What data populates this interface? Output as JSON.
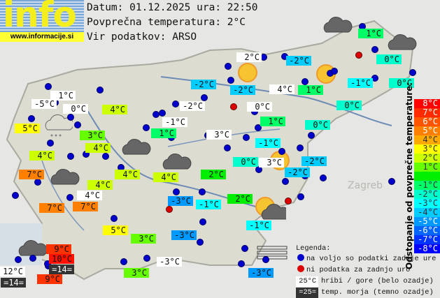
{
  "logo": {
    "text": "info",
    "url": "www.informacije.si"
  },
  "header": {
    "date_line": "Datum: 01.12.2025 ura: 22:50",
    "avg_line": "Povprečna temperatura: 2°C",
    "source_line": "Vir podatkov: ARSO"
  },
  "map_labels": {
    "zagreb": "Zagreb"
  },
  "stations": [
    {
      "t": "1°C",
      "bg": "#00ff66"
    },
    {
      "t": "2°C",
      "bg": "#ffffff"
    },
    {
      "t": "-2°C",
      "bg": "#00ccff"
    },
    {
      "t": "0°C",
      "bg": "#00ffcc"
    },
    {
      "t": "-2°C",
      "bg": "#00ccff"
    },
    {
      "t": "-2°C",
      "bg": "#00ccff"
    },
    {
      "t": "4°C",
      "bg": "#ffffff"
    },
    {
      "t": "1°C",
      "bg": "#00ff66"
    },
    {
      "t": "-1°C",
      "bg": "#00ffff"
    },
    {
      "t": "0°C",
      "bg": "#00ffcc"
    },
    {
      "t": "1°C",
      "bg": "#ffffff"
    },
    {
      "t": "-5°C",
      "bg": "#ffffff"
    },
    {
      "t": "0°C",
      "bg": "#ffffff"
    },
    {
      "t": "4°C",
      "bg": "#ccff00"
    },
    {
      "t": "-2°C",
      "bg": "#ffffff"
    },
    {
      "t": "0°C",
      "bg": "#ffffff"
    },
    {
      "t": "0°C",
      "bg": "#00ffcc"
    },
    {
      "t": "-1°C",
      "bg": "#ffffff"
    },
    {
      "t": "1°C",
      "bg": "#00ff66"
    },
    {
      "t": "0°C",
      "bg": "#00ffcc"
    },
    {
      "t": "5°C",
      "bg": "#ffff00"
    },
    {
      "t": "3°C",
      "bg": "#66ff00"
    },
    {
      "t": "1°C",
      "bg": "#00ff66"
    },
    {
      "t": "3°C",
      "bg": "#ffffff"
    },
    {
      "t": "4°C",
      "bg": "#ccff00"
    },
    {
      "t": "-1°C",
      "bg": "#00ffff"
    },
    {
      "t": "4°C",
      "bg": "#ccff00"
    },
    {
      "t": "0°C",
      "bg": "#00ffcc"
    },
    {
      "t": "3°C",
      "bg": "#ffffff"
    },
    {
      "t": "-2°C",
      "bg": "#00ccff"
    },
    {
      "t": "-2°C",
      "bg": "#00ccff"
    },
    {
      "t": "2°C",
      "bg": "#00ee00"
    },
    {
      "t": "4°C",
      "bg": "#ccff00"
    },
    {
      "t": "4°C",
      "bg": "#ccff00"
    },
    {
      "t": "7°C",
      "bg": "#ff8000"
    },
    {
      "t": "4°C",
      "bg": "#ccff00"
    },
    {
      "t": "4°C",
      "bg": "#ffffff"
    },
    {
      "t": "-3°C",
      "bg": "#0099ff"
    },
    {
      "t": "-1°C",
      "bg": "#00ffff"
    },
    {
      "t": "2°C",
      "bg": "#00ee00"
    },
    {
      "t": "7°C",
      "bg": "#ff8000"
    },
    {
      "t": "7°C",
      "bg": "#ff8000"
    },
    {
      "t": "-1°C",
      "bg": "#00ffff"
    },
    {
      "t": "5°C",
      "bg": "#ffff00"
    },
    {
      "t": "3°C",
      "bg": "#66ff00"
    },
    {
      "t": "-3°C",
      "bg": "#0099ff"
    },
    {
      "t": "9°C",
      "bg": "#ff3300"
    },
    {
      "t": "10°C",
      "bg": "#ff1100"
    },
    {
      "t": "=14=",
      "bg": "#333333"
    },
    {
      "t": "12°C",
      "bg": "#ffffff"
    },
    {
      "t": "=14=",
      "bg": "#333333"
    },
    {
      "t": "9°C",
      "bg": "#ff3300"
    },
    {
      "t": "-3°C",
      "bg": "#ffffff"
    },
    {
      "t": "3°C",
      "bg": "#66ff00"
    },
    {
      "t": "-3°C",
      "bg": "#0099ff"
    }
  ],
  "weather_icons": [
    "sun",
    "sun",
    "sun",
    "partly-cloudy",
    "cloud-rain",
    "cloud",
    "cloud",
    "cloud",
    "cloud",
    "cloud",
    "cloud",
    "fog"
  ],
  "scale": {
    "title": "Odstopanje od povprečne temperature:",
    "items": [
      {
        "t": "8°C",
        "bg": "#ff0000",
        "fg": "#ffffff"
      },
      {
        "t": "7°C",
        "bg": "#ff2a00",
        "fg": "#ffffff"
      },
      {
        "t": "6°C",
        "bg": "#ff5500",
        "fg": "#ffffff"
      },
      {
        "t": "5°C",
        "bg": "#ff8000",
        "fg": "#ffffff"
      },
      {
        "t": "4°C",
        "bg": "#ffaa00",
        "fg": "#333333"
      },
      {
        "t": "3°C",
        "bg": "#ffff00",
        "fg": "#333333"
      },
      {
        "t": "2°C",
        "bg": "#ccff00",
        "fg": "#333333"
      },
      {
        "t": "1°C",
        "bg": "#66ff00",
        "fg": "#333333"
      },
      {
        "t": "",
        "bg": "#00ee00",
        "fg": "#333333"
      },
      {
        "t": "-1°C",
        "bg": "#00ff66",
        "fg": "#333333"
      },
      {
        "t": "-2°C",
        "bg": "#00ffcc",
        "fg": "#333333"
      },
      {
        "t": "-3°C",
        "bg": "#00ffff",
        "fg": "#333333"
      },
      {
        "t": "-4°C",
        "bg": "#00ccff",
        "fg": "#333333"
      },
      {
        "t": "-5°C",
        "bg": "#0099ff",
        "fg": "#ffffff"
      },
      {
        "t": "-6°C",
        "bg": "#0066ff",
        "fg": "#ffffff"
      },
      {
        "t": "-7°C",
        "bg": "#0033ff",
        "fg": "#ffffff"
      },
      {
        "t": "-8°C",
        "bg": "#0000ff",
        "fg": "#ffffff"
      }
    ]
  },
  "legend": {
    "title": "Legenda:",
    "blue": "na voljo so podatki zadnje ure",
    "red": "ni podatka za zadnjo uro",
    "mountain_sample": "25°C",
    "mountain": "hribi / gore (belo ozadje)",
    "sea_sample": "=25=",
    "sea": "temp. morja (temno ozadje)"
  },
  "colors": {
    "dot_ok": "#0000cc",
    "dot_missing": "#dd0000",
    "sun": "#f6c431"
  }
}
